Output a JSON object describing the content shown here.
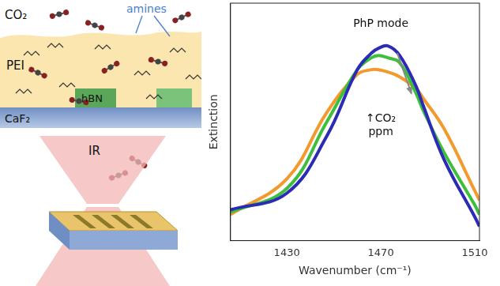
{
  "diagram": {
    "labels": {
      "co2": "CO₂",
      "amines": "amines",
      "pei": "PEI",
      "hbn": "hBN",
      "substrate": "CaF₂",
      "beam": "IR"
    }
  },
  "chart_data": {
    "type": "line",
    "x_label": "Wavenumber (cm⁻¹)",
    "y_label": "Extinction",
    "annotations": [
      "PhP mode",
      "↑CO₂ ppm"
    ],
    "x": [
      1406,
      1430,
      1447,
      1460,
      1466,
      1469,
      1473,
      1478,
      1485,
      1488,
      1497,
      1510,
      1512
    ],
    "series": [
      {
        "color": "#2b2bb5",
        "values": [
          0.13,
          0.2,
          0.44,
          0.72,
          0.79,
          0.81,
          0.82,
          0.78,
          0.65,
          0.57,
          0.34,
          0.1,
          0.06
        ]
      },
      {
        "color": "#3dbf3d",
        "values": [
          0.12,
          0.22,
          0.5,
          0.72,
          0.77,
          0.78,
          0.77,
          0.75,
          0.62,
          0.55,
          0.37,
          0.15,
          0.11
        ]
      },
      {
        "color": "#f39a2e",
        "values": [
          0.11,
          0.26,
          0.54,
          0.7,
          0.72,
          0.72,
          0.71,
          0.69,
          0.64,
          0.6,
          0.47,
          0.21,
          0.17
        ]
      }
    ],
    "xlim": [
      1406,
      1512
    ],
    "xticks": [
      1430,
      1470,
      1510
    ],
    "ylim": [
      0,
      1
    ],
    "tick_labels": "x",
    "grid": false
  }
}
